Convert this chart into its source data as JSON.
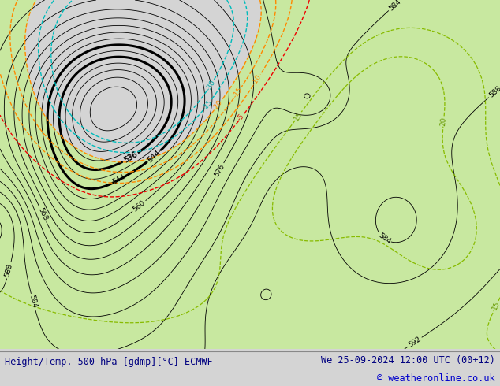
{
  "title_left": "Height/Temp. 500 hPa [gdmp][°C] ECMWF",
  "title_right": "We 25-09-2024 12:00 UTC (00+12)",
  "copyright": "© weatheronline.co.uk",
  "bg_color": "#d4d4d4",
  "green_color": "#c8e8a0",
  "land_gray": "#b8b8b8",
  "title_color": "#000080",
  "copyright_color": "#0000cc",
  "bottom_bg": "#e8e8e8",
  "title_fontsize": 8.5
}
